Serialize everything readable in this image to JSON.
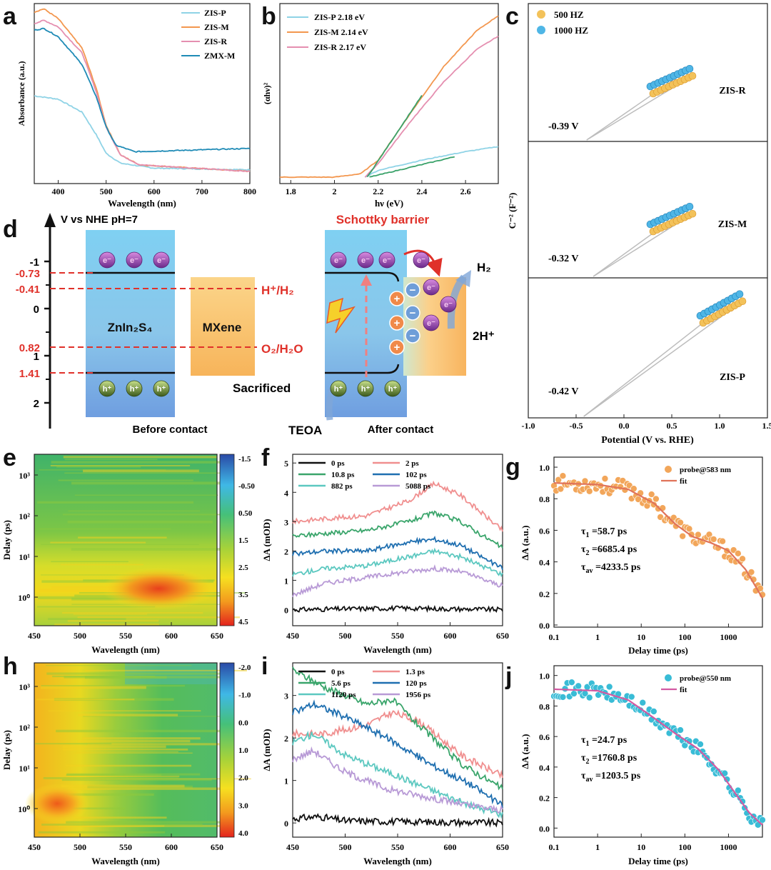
{
  "chart_data": [
    {
      "panel": "a",
      "type": "line",
      "title": "",
      "xlabel": "Wavelength (nm)",
      "ylabel": "Absorbance (a.u.)",
      "xlim": [
        350,
        800
      ],
      "ylim": [
        0,
        1
      ],
      "xticks": [
        400,
        500,
        600,
        700,
        800
      ],
      "legend": [
        "ZIS-P",
        "ZIS-M",
        "ZIS-R",
        "ZMX-M"
      ],
      "series": [
        {
          "name": "ZIS-P",
          "color": "#8fd3e6",
          "points": [
            [
              350,
              0.46
            ],
            [
              400,
              0.44
            ],
            [
              450,
              0.36
            ],
            [
              480,
              0.22
            ],
            [
              500,
              0.11
            ],
            [
              530,
              0.05
            ],
            [
              600,
              0.02
            ],
            [
              800,
              0.01
            ]
          ]
        },
        {
          "name": "ZIS-M",
          "color": "#f3974f",
          "points": [
            [
              350,
              0.97
            ],
            [
              370,
              0.99
            ],
            [
              400,
              0.93
            ],
            [
              450,
              0.75
            ],
            [
              480,
              0.5
            ],
            [
              500,
              0.28
            ],
            [
              530,
              0.1
            ],
            [
              570,
              0.04
            ],
            [
              800,
              0.0
            ]
          ]
        },
        {
          "name": "ZIS-R",
          "color": "#e58fb0",
          "points": [
            [
              350,
              0.9
            ],
            [
              370,
              0.92
            ],
            [
              400,
              0.88
            ],
            [
              450,
              0.72
            ],
            [
              480,
              0.48
            ],
            [
              500,
              0.27
            ],
            [
              530,
              0.1
            ],
            [
              570,
              0.04
            ],
            [
              800,
              0.0
            ]
          ]
        },
        {
          "name": "ZMX-M",
          "color": "#1f8bb6",
          "points": [
            [
              350,
              0.86
            ],
            [
              370,
              0.87
            ],
            [
              400,
              0.82
            ],
            [
              450,
              0.65
            ],
            [
              480,
              0.45
            ],
            [
              500,
              0.27
            ],
            [
              520,
              0.16
            ],
            [
              560,
              0.12
            ],
            [
              800,
              0.14
            ]
          ]
        }
      ]
    },
    {
      "panel": "b",
      "type": "line",
      "title": "",
      "xlabel": "hν (eV)",
      "ylabel": "(αhν)²",
      "xlim": [
        1.75,
        2.75
      ],
      "ylim": [
        0,
        1
      ],
      "xticks": [
        1.8,
        2.0,
        2.2,
        2.4,
        2.6
      ],
      "legend": [
        "ZIS-P    2.18 eV",
        "ZIS-M    2.14 eV",
        "ZIS-R    2.17 eV"
      ],
      "series": [
        {
          "name": "ZIS-P",
          "color": "#8fd3e6",
          "points": [
            [
              2.14,
              0.0
            ],
            [
              2.2,
              0.04
            ],
            [
              2.4,
              0.1
            ],
            [
              2.6,
              0.15
            ],
            [
              2.75,
              0.18
            ]
          ]
        },
        {
          "name": "ZIS-M",
          "color": "#f3974f",
          "points": [
            [
              1.75,
              0.0
            ],
            [
              2.0,
              0.0
            ],
            [
              2.12,
              0.02
            ],
            [
              2.2,
              0.1
            ],
            [
              2.35,
              0.38
            ],
            [
              2.5,
              0.65
            ],
            [
              2.65,
              0.86
            ],
            [
              2.75,
              0.95
            ]
          ]
        },
        {
          "name": "ZIS-R",
          "color": "#e58fb0",
          "points": [
            [
              2.14,
              0.0
            ],
            [
              2.2,
              0.08
            ],
            [
              2.35,
              0.33
            ],
            [
              2.5,
              0.56
            ],
            [
              2.65,
              0.75
            ],
            [
              2.75,
              0.83
            ]
          ]
        },
        {
          "name": "tangent",
          "color": "#3aa26a",
          "points": [
            [
              2.15,
              0.0
            ],
            [
              2.4,
              0.48
            ]
          ]
        },
        {
          "name": "baseline",
          "color": "#3aa26a",
          "points": [
            [
              2.16,
              0.0
            ],
            [
              2.55,
              0.12
            ]
          ]
        }
      ]
    },
    {
      "panel": "c",
      "type": "scatter",
      "xlabel": "Potential (V vs. RHE)",
      "ylabel": "C⁻² (F⁻²)",
      "xlim": [
        -1.0,
        1.5
      ],
      "xticks": [
        -1.0,
        -0.5,
        0.0,
        0.5,
        1.0,
        1.5
      ],
      "legend": [
        "500 HZ",
        "1000 HZ"
      ],
      "subplots": [
        {
          "sample": "ZIS-R",
          "intercept_label": "-0.39 V",
          "intercept": -0.39
        },
        {
          "sample": "ZIS-M",
          "intercept_label": "-0.32 V",
          "intercept": -0.32
        },
        {
          "sample": "ZIS-P",
          "intercept_label": "-0.42 V",
          "intercept": -0.42
        }
      ]
    },
    {
      "panel": "e",
      "type": "heatmap",
      "xlabel": "Wavelength (nm)",
      "ylabel": "Delay (ps)",
      "xticks": [
        450,
        500,
        550,
        600,
        650
      ],
      "yticks": [
        "10⁰",
        "10¹",
        "10²",
        "10³"
      ],
      "colorbar": [
        "-1.5",
        "-0.50",
        "0.50",
        "1.5",
        "2.5",
        "3.5",
        "4.5"
      ]
    },
    {
      "panel": "f",
      "type": "line",
      "xlabel": "Wavelength (nm)",
      "ylabel": "ΔA (mOD)",
      "xlim": [
        450,
        650
      ],
      "ylim": [
        -0.5,
        5.2
      ],
      "xticks": [
        450,
        500,
        550,
        600,
        650
      ],
      "yticks": [
        0,
        1,
        2,
        3,
        4,
        5
      ],
      "series": [
        {
          "name": "0 ps",
          "color": "#111111",
          "points": [
            [
              450,
              0.0
            ],
            [
              550,
              0.05
            ],
            [
              650,
              0.0
            ]
          ]
        },
        {
          "name": "2 ps",
          "color": "#f08f8f",
          "points": [
            [
              450,
              3.0
            ],
            [
              480,
              3.1
            ],
            [
              520,
              3.2
            ],
            [
              560,
              3.7
            ],
            [
              585,
              4.3
            ],
            [
              610,
              3.9
            ],
            [
              650,
              2.7
            ]
          ]
        },
        {
          "name": "10.8 ps",
          "color": "#3aa56b",
          "points": [
            [
              450,
              2.5
            ],
            [
              480,
              2.6
            ],
            [
              520,
              2.7
            ],
            [
              560,
              3.0
            ],
            [
              585,
              3.3
            ],
            [
              610,
              3.0
            ],
            [
              650,
              2.1
            ]
          ]
        },
        {
          "name": "102 ps",
          "color": "#1f6fb0",
          "points": [
            [
              450,
              1.9
            ],
            [
              480,
              2.0
            ],
            [
              520,
              2.0
            ],
            [
              560,
              2.3
            ],
            [
              585,
              2.4
            ],
            [
              610,
              2.2
            ],
            [
              650,
              1.4
            ]
          ]
        },
        {
          "name": "882 ps",
          "color": "#5cc8c0",
          "points": [
            [
              450,
              1.2
            ],
            [
              480,
              1.4
            ],
            [
              520,
              1.5
            ],
            [
              560,
              1.8
            ],
            [
              585,
              2.0
            ],
            [
              610,
              1.8
            ],
            [
              650,
              1.2
            ]
          ]
        },
        {
          "name": "5088 ps",
          "color": "#b89ad6",
          "points": [
            [
              450,
              0.5
            ],
            [
              480,
              0.9
            ],
            [
              520,
              1.1
            ],
            [
              560,
              1.3
            ],
            [
              585,
              1.4
            ],
            [
              610,
              1.3
            ],
            [
              650,
              0.8
            ]
          ]
        }
      ]
    },
    {
      "panel": "g",
      "type": "scatter",
      "xlabel": "Delay time (ps)",
      "ylabel": "ΔA (a.u.)",
      "xlim": [
        0.1,
        6000
      ],
      "ylim": [
        0,
        1.05
      ],
      "xscale": "log",
      "xticks": [
        "0.1",
        "1",
        "10",
        "100",
        "1000"
      ],
      "yticks": [
        0.0,
        0.2,
        0.4,
        0.6,
        0.8,
        1.0
      ],
      "legend": [
        "probe@583 nm",
        "fit"
      ],
      "point_color": "#f2a65a",
      "fit_color": "#e0735a",
      "fit": [
        [
          0.1,
          0.9
        ],
        [
          1,
          0.89
        ],
        [
          5,
          0.86
        ],
        [
          20,
          0.77
        ],
        [
          60,
          0.64
        ],
        [
          150,
          0.56
        ],
        [
          400,
          0.52
        ],
        [
          1000,
          0.47
        ],
        [
          2500,
          0.35
        ],
        [
          6000,
          0.17
        ]
      ],
      "annotations": {
        "tau1": "=58.7 ps",
        "tau2": "=6685.4 ps",
        "tauav": "=4233.5 ps"
      }
    },
    {
      "panel": "h",
      "type": "heatmap",
      "xlabel": "Wavelength (nm)",
      "ylabel": "Delay (ps)",
      "xticks": [
        450,
        500,
        550,
        600,
        650
      ],
      "yticks": [
        "10⁰",
        "10¹",
        "10²",
        "10³"
      ],
      "colorbar": [
        "-2.0",
        "-1.0",
        "0.0",
        "1.0",
        "2.0",
        "3.0",
        "4.0"
      ]
    },
    {
      "panel": "i",
      "type": "line",
      "xlabel": "Wavelength (nm)",
      "ylabel": "ΔA (mOD)",
      "xlim": [
        450,
        650
      ],
      "ylim": [
        -0.3,
        3.7
      ],
      "xticks": [
        450,
        500,
        550,
        600,
        650
      ],
      "yticks": [
        0,
        1,
        2,
        3
      ],
      "series": [
        {
          "name": "0 ps",
          "color": "#111111",
          "points": [
            [
              450,
              0.1
            ],
            [
              475,
              0.15
            ],
            [
              500,
              0.05
            ],
            [
              650,
              0.0
            ]
          ]
        },
        {
          "name": "1.3 ps",
          "color": "#f08f8f",
          "points": [
            [
              450,
              2.1
            ],
            [
              480,
              2.1
            ],
            [
              520,
              2.3
            ],
            [
              545,
              2.6
            ],
            [
              570,
              2.4
            ],
            [
              610,
              1.6
            ],
            [
              650,
              1.1
            ]
          ]
        },
        {
          "name": "5.6 ps",
          "color": "#3aa56b",
          "points": [
            [
              450,
              3.6
            ],
            [
              480,
              3.2
            ],
            [
              520,
              2.8
            ],
            [
              545,
              2.9
            ],
            [
              570,
              2.3
            ],
            [
              610,
              1.4
            ],
            [
              650,
              0.8
            ]
          ]
        },
        {
          "name": "120 ps",
          "color": "#1f6fb0",
          "points": [
            [
              450,
              2.6
            ],
            [
              470,
              2.8
            ],
            [
              500,
              2.5
            ],
            [
              540,
              2.0
            ],
            [
              580,
              1.4
            ],
            [
              620,
              0.9
            ],
            [
              650,
              0.4
            ]
          ]
        },
        {
          "name": "1120 ps",
          "color": "#5cc8c0",
          "points": [
            [
              450,
              1.9
            ],
            [
              470,
              2.1
            ],
            [
              500,
              1.6
            ],
            [
              540,
              1.2
            ],
            [
              580,
              0.8
            ],
            [
              620,
              0.4
            ],
            [
              650,
              0.2
            ]
          ]
        },
        {
          "name": "1956 ps",
          "color": "#b89ad6",
          "points": [
            [
              450,
              1.5
            ],
            [
              470,
              1.7
            ],
            [
              500,
              1.2
            ],
            [
              540,
              0.8
            ],
            [
              580,
              0.6
            ],
            [
              620,
              0.4
            ],
            [
              650,
              0.3
            ]
          ]
        }
      ]
    },
    {
      "panel": "j",
      "type": "scatter",
      "xlabel": "Delay time (ps)",
      "ylabel": "ΔA (a.u.)",
      "xlim": [
        0.1,
        6000
      ],
      "ylim": [
        -0.05,
        1.05
      ],
      "xscale": "log",
      "xticks": [
        "0.1",
        "1",
        "10",
        "100",
        "1000"
      ],
      "yticks": [
        0.0,
        0.2,
        0.4,
        0.6,
        0.8,
        1.0
      ],
      "legend": [
        "probe@550 nm",
        "fit"
      ],
      "point_color": "#39bcd6",
      "fit_color": "#d35aa2",
      "fit": [
        [
          0.1,
          0.91
        ],
        [
          1,
          0.9
        ],
        [
          5,
          0.84
        ],
        [
          20,
          0.72
        ],
        [
          60,
          0.62
        ],
        [
          200,
          0.52
        ],
        [
          600,
          0.38
        ],
        [
          1500,
          0.22
        ],
        [
          3000,
          0.1
        ],
        [
          6000,
          0.02
        ]
      ],
      "annotations": {
        "tau1": "=24.7 ps",
        "tau2": "=1760.8 ps",
        "tauav": "=1203.5 ps"
      }
    }
  ],
  "panels": {
    "a": "a",
    "b": "b",
    "c": "c",
    "d": "d",
    "e": "e",
    "f": "f",
    "g": "g",
    "h": "h",
    "i": "i",
    "j": "j"
  },
  "diagram_d": {
    "axis_title": "V vs NHE pH=7",
    "ticks": [
      "-1",
      "0",
      "1",
      "2"
    ],
    "levels": [
      "-0.73",
      "-0.41",
      "0.82",
      "1.41"
    ],
    "h_couple": "H⁺/H₂",
    "o_couple": "O₂/H₂O",
    "zis": "ZnIn₂S₄",
    "mxene": "MXene",
    "before": "Before contact",
    "after": "After contact",
    "schottky": "Schottky barrier",
    "h2": "H₂",
    "twoh": "2H⁺",
    "sacrificed": "Sacrificed",
    "teoa": "TEOA",
    "e": "e⁻",
    "h": "h⁺",
    "plus": "+",
    "minus": "−"
  }
}
